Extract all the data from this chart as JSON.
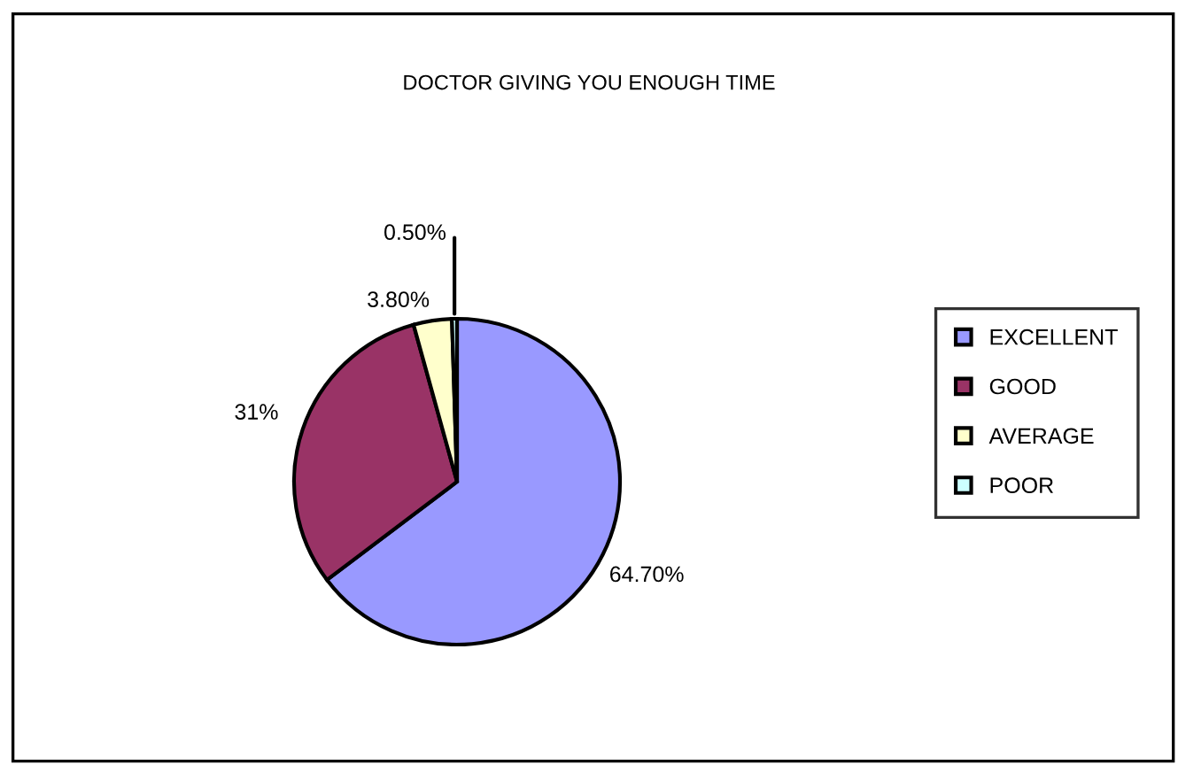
{
  "chart_data": {
    "type": "pie",
    "title": "DOCTOR GIVING YOU ENOUGH TIME",
    "categories": [
      "EXCELLENT",
      "GOOD",
      "AVERAGE",
      "POOR"
    ],
    "values": [
      64.7,
      31,
      3.8,
      0.5
    ],
    "value_labels": [
      "64.70%",
      "31%",
      "3.80%",
      "0.50%"
    ],
    "colors": [
      "#9999ff",
      "#993366",
      "#ffffcc",
      "#ccffff"
    ],
    "legend": "right"
  }
}
